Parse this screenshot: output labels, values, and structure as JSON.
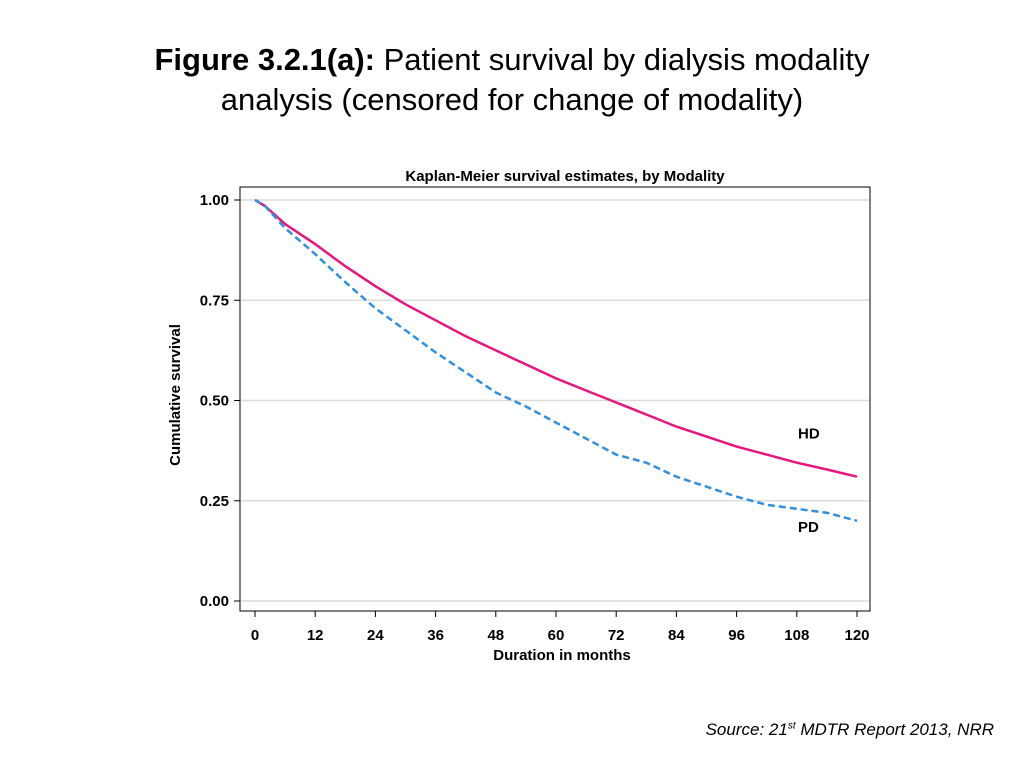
{
  "figure": {
    "title_bold": "Figure 3.2.1(a):",
    "title_rest_line1": "Patient survival by dialysis modality",
    "title_line2": "analysis (censored for change of modality)"
  },
  "source": {
    "prefix": "Source: 21",
    "superscript": "st",
    "rest": "MDTR Report 2013, NRR"
  },
  "chart_data": {
    "type": "line",
    "title": "Kaplan-Meier survival estimates, by Modality",
    "xlabel": "Duration in months",
    "ylabel": "Cumulative survival",
    "xlim": [
      0,
      120
    ],
    "ylim": [
      0,
      1
    ],
    "xticks": [
      "0",
      "12",
      "24",
      "36",
      "48",
      "60",
      "72",
      "84",
      "96",
      "108",
      "120"
    ],
    "yticks": [
      "0.00",
      "0.25",
      "0.50",
      "0.75",
      "1.00"
    ],
    "grid": "horizontal",
    "series": [
      {
        "name": "HD",
        "color": "#e8157e",
        "style": "solid",
        "x": [
          0,
          2,
          6,
          12,
          18,
          24,
          30,
          36,
          42,
          48,
          54,
          60,
          66,
          72,
          78,
          84,
          90,
          96,
          102,
          108,
          114,
          120
        ],
        "y": [
          1.0,
          0.985,
          0.94,
          0.89,
          0.835,
          0.785,
          0.74,
          0.7,
          0.66,
          0.625,
          0.59,
          0.555,
          0.525,
          0.495,
          0.465,
          0.435,
          0.41,
          0.385,
          0.365,
          0.345,
          0.328,
          0.31
        ]
      },
      {
        "name": "PD",
        "color": "#2f8fe0",
        "style": "dashed",
        "x": [
          0,
          2,
          6,
          12,
          18,
          24,
          30,
          36,
          42,
          48,
          54,
          60,
          66,
          72,
          78,
          84,
          90,
          96,
          102,
          108,
          114,
          120
        ],
        "y": [
          1.0,
          0.985,
          0.93,
          0.865,
          0.795,
          0.73,
          0.675,
          0.62,
          0.57,
          0.52,
          0.485,
          0.445,
          0.405,
          0.365,
          0.345,
          0.31,
          0.285,
          0.26,
          0.24,
          0.23,
          0.22,
          0.2
        ]
      }
    ]
  }
}
